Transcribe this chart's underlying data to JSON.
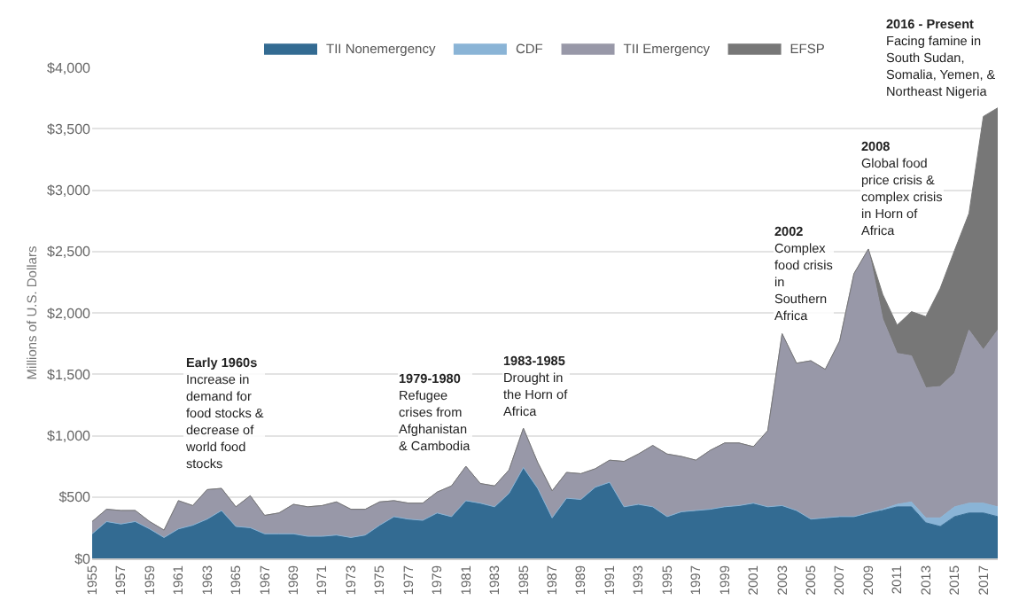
{
  "chart_data": {
    "type": "area",
    "stacked": true,
    "ylabel": "Millions of U.S. Dollars",
    "x": [
      1955,
      1956,
      1957,
      1958,
      1959,
      1960,
      1961,
      1962,
      1963,
      1964,
      1965,
      1966,
      1967,
      1968,
      1969,
      1970,
      1971,
      1972,
      1973,
      1974,
      1975,
      1976,
      1977,
      1978,
      1979,
      1980,
      1981,
      1982,
      1983,
      1984,
      1985,
      1986,
      1987,
      1988,
      1989,
      1990,
      1991,
      1992,
      1993,
      1994,
      1995,
      1996,
      1997,
      1998,
      1999,
      2000,
      2001,
      2002,
      2003,
      2004,
      2005,
      2006,
      2007,
      2008,
      2009,
      2010,
      2011,
      2012,
      2013,
      2014,
      2015,
      2016,
      2017,
      2018
    ],
    "series": [
      {
        "name": "TII Nonemergency",
        "color": "#336b92",
        "values": [
          200,
          300,
          280,
          300,
          240,
          170,
          240,
          270,
          320,
          390,
          260,
          250,
          200,
          200,
          200,
          180,
          180,
          190,
          170,
          190,
          270,
          340,
          320,
          310,
          370,
          340,
          470,
          450,
          420,
          530,
          740,
          570,
          330,
          490,
          480,
          580,
          620,
          420,
          440,
          420,
          340,
          380,
          390,
          400,
          420,
          430,
          450,
          420,
          430,
          390,
          320,
          330,
          340,
          340,
          370,
          390,
          420,
          420,
          290,
          260,
          340,
          370,
          370,
          340
        ]
      },
      {
        "name": "CDF",
        "color": "#8ab4d6",
        "values": [
          0,
          0,
          0,
          0,
          0,
          0,
          0,
          0,
          0,
          0,
          0,
          0,
          0,
          0,
          0,
          0,
          0,
          0,
          0,
          0,
          0,
          0,
          0,
          0,
          0,
          0,
          0,
          0,
          0,
          0,
          0,
          0,
          0,
          0,
          0,
          0,
          0,
          0,
          0,
          0,
          0,
          0,
          0,
          0,
          0,
          0,
          0,
          0,
          0,
          0,
          0,
          0,
          0,
          0,
          0,
          10,
          20,
          40,
          40,
          70,
          80,
          80,
          80,
          80
        ]
      },
      {
        "name": "TII Emergency",
        "color": "#9898a8",
        "values": [
          100,
          100,
          110,
          90,
          60,
          60,
          230,
          160,
          240,
          180,
          160,
          260,
          150,
          170,
          240,
          240,
          250,
          270,
          230,
          210,
          190,
          130,
          130,
          140,
          170,
          250,
          280,
          160,
          170,
          190,
          320,
          210,
          220,
          210,
          210,
          150,
          180,
          370,
          410,
          500,
          510,
          450,
          410,
          480,
          520,
          510,
          460,
          620,
          1400,
          1200,
          1290,
          1210,
          1430,
          1980,
          2150,
          1550,
          1230,
          1190,
          1060,
          1070,
          1090,
          1410,
          1250,
          1440
        ]
      },
      {
        "name": "EFSP",
        "color": "#777777",
        "values": [
          0,
          0,
          0,
          0,
          0,
          0,
          0,
          0,
          0,
          0,
          0,
          0,
          0,
          0,
          0,
          0,
          0,
          0,
          0,
          0,
          0,
          0,
          0,
          0,
          0,
          0,
          0,
          0,
          0,
          0,
          0,
          0,
          0,
          0,
          0,
          0,
          0,
          0,
          0,
          0,
          0,
          0,
          0,
          0,
          0,
          0,
          0,
          0,
          0,
          0,
          0,
          0,
          0,
          0,
          0,
          200,
          230,
          360,
          580,
          800,
          1000,
          950,
          1900,
          1810
        ]
      }
    ],
    "xlim": [
      1955,
      2018
    ],
    "xticks": [
      1955,
      1957,
      1959,
      1961,
      1963,
      1965,
      1967,
      1969,
      1971,
      1973,
      1975,
      1977,
      1979,
      1981,
      1983,
      1985,
      1987,
      1989,
      1991,
      1993,
      1995,
      1997,
      1999,
      2001,
      2003,
      2005,
      2007,
      2009,
      2011,
      2013,
      2015,
      2017
    ],
    "ylim": [
      0,
      4000
    ],
    "yticks": [
      {
        "value": 0,
        "label": "$0"
      },
      {
        "value": 500,
        "label": "$500"
      },
      {
        "value": 1000,
        "label": "$1,000"
      },
      {
        "value": 1500,
        "label": "$1,500"
      },
      {
        "value": 2000,
        "label": "$2,000"
      },
      {
        "value": 2500,
        "label": "$2,500"
      },
      {
        "value": 3000,
        "label": "$3,000"
      },
      {
        "value": 3500,
        "label": "$3,500"
      },
      {
        "value": 4000,
        "label": "$4,000"
      }
    ],
    "grid": "y",
    "legend": "top",
    "annotations": [
      "Early 1960s\nIncrease in\ndemand for\nfood stocks &\ndecrease of\nworld food\nstocks",
      "1979-1980\nRefugee\ncrises from\nAfghanistan\n& Cambodia",
      "1983-1985\nDrought in\nthe Horn of\nAfrica",
      "2002\nComplex\nfood crisis\nin\nSouthern\nAfrica",
      "2008\nGlobal food\nprice crisis &\ncomplex crisis\nin Horn of\nAfrica",
      "2016 - Present\nFacing famine in\nSouth Sudan,\nSomalia, Yemen, &\nNortheast Nigeria"
    ]
  }
}
